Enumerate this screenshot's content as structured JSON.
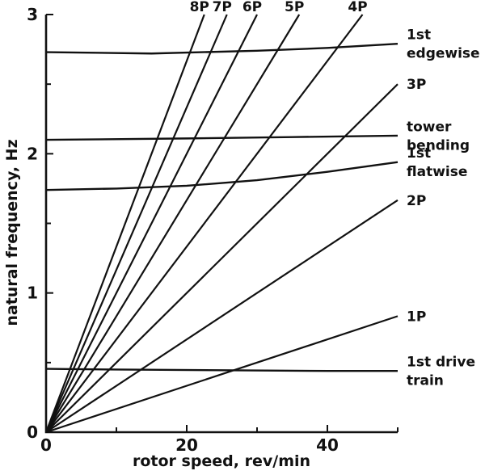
{
  "figure": {
    "background": "#ffffff",
    "line_color": "#111111"
  },
  "chart_data": {
    "type": "line",
    "title": "",
    "xlabel": "rotor speed, rev/min",
    "ylabel": "natural frequency, Hz",
    "xlim": [
      0,
      50
    ],
    "ylim": [
      0,
      3
    ],
    "grid": false,
    "legend_position": "none",
    "x_ticks_major": [
      0,
      20,
      40
    ],
    "x_tick_labels": [
      "0",
      "20",
      "40"
    ],
    "x_ticks_minor": [
      10,
      30,
      50
    ],
    "y_ticks_major": [
      0,
      1,
      2,
      3
    ],
    "y_tick_labels": [
      "0",
      "1",
      "2",
      "3"
    ],
    "y_ticks_minor": [
      0.5,
      1.5,
      2.5
    ],
    "harmonics": [
      {
        "name": "1P",
        "per_rev": 1,
        "hz_per_rpm": 0.01667
      },
      {
        "name": "2P",
        "per_rev": 2,
        "hz_per_rpm": 0.03333
      },
      {
        "name": "3P",
        "per_rev": 3,
        "hz_per_rpm": 0.05
      },
      {
        "name": "4P",
        "per_rev": 4,
        "hz_per_rpm": 0.06667
      },
      {
        "name": "5P",
        "per_rev": 5,
        "hz_per_rpm": 0.08333
      },
      {
        "name": "6P",
        "per_rev": 6,
        "hz_per_rpm": 0.1
      },
      {
        "name": "7P",
        "per_rev": 7,
        "hz_per_rpm": 0.11667
      },
      {
        "name": "8P",
        "per_rev": 8,
        "hz_per_rpm": 0.13333
      }
    ],
    "modes": [
      {
        "name": "1st drive train",
        "label_lines": [
          "1st drive",
          "train"
        ],
        "points": [
          [
            0,
            0.455
          ],
          [
            10,
            0.45
          ],
          [
            25,
            0.445
          ],
          [
            40,
            0.44
          ],
          [
            50,
            0.44
          ]
        ]
      },
      {
        "name": "1st flatwise",
        "label_lines": [
          "1st",
          "flatwise"
        ],
        "points": [
          [
            0,
            1.74
          ],
          [
            10,
            1.75
          ],
          [
            20,
            1.77
          ],
          [
            30,
            1.81
          ],
          [
            40,
            1.87
          ],
          [
            50,
            1.94
          ]
        ]
      },
      {
        "name": "tower bending",
        "label_lines": [
          "tower",
          "bending"
        ],
        "points": [
          [
            0,
            2.1
          ],
          [
            20,
            2.11
          ],
          [
            35,
            2.12
          ],
          [
            50,
            2.13
          ]
        ]
      },
      {
        "name": "1st edgewise",
        "label_lines": [
          "1st",
          "edgewise"
        ],
        "points": [
          [
            0,
            2.73
          ],
          [
            15,
            2.72
          ],
          [
            30,
            2.74
          ],
          [
            40,
            2.76
          ],
          [
            50,
            2.79
          ]
        ]
      }
    ]
  }
}
